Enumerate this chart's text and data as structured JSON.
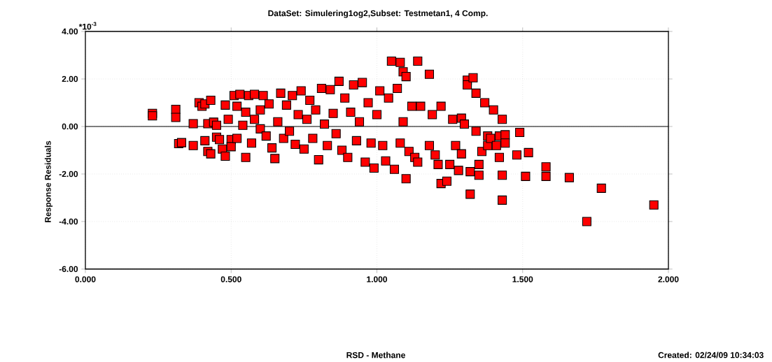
{
  "chart_data": {
    "type": "scatter",
    "title": "DataSet: Simulering1og2,Subset: Testmetan1, 4 Comp.",
    "ylabel": "Response Residuals",
    "annotations": [
      "*10$^{-3}$",
      "RSD - Methane",
      "Created: 02/24/09 10:34:03"
    ],
    "x": [
      0.23,
      0.23,
      0.31,
      0.31,
      0.32,
      0.33,
      0.37,
      0.37,
      0.39,
      0.4,
      0.41,
      0.41,
      0.42,
      0.42,
      0.43,
      0.43,
      0.44,
      0.45,
      0.45,
      0.46,
      0.47,
      0.48,
      0.48,
      0.49,
      0.5,
      0.5,
      0.51,
      0.52,
      0.52,
      0.53,
      0.54,
      0.55,
      0.55,
      0.56,
      0.57,
      0.58,
      0.58,
      0.6,
      0.6,
      0.61,
      0.62,
      0.63,
      0.64,
      0.65,
      0.66,
      0.67,
      0.68,
      0.69,
      0.7,
      0.71,
      0.72,
      0.73,
      0.74,
      0.75,
      0.76,
      0.77,
      0.78,
      0.79,
      0.8,
      0.81,
      0.82,
      0.83,
      0.84,
      0.85,
      0.86,
      0.87,
      0.88,
      0.89,
      0.9,
      0.91,
      0.92,
      0.93,
      0.94,
      0.95,
      0.96,
      0.97,
      0.98,
      0.99,
      1.0,
      1.01,
      1.02,
      1.03,
      1.04,
      1.05,
      1.06,
      1.07,
      1.08,
      1.08,
      1.09,
      1.09,
      1.1,
      1.1,
      1.11,
      1.12,
      1.13,
      1.14,
      1.14,
      1.15,
      1.18,
      1.18,
      1.19,
      1.2,
      1.21,
      1.22,
      1.22,
      1.24,
      1.25,
      1.26,
      1.27,
      1.28,
      1.29,
      1.29,
      1.3,
      1.31,
      1.31,
      1.32,
      1.32,
      1.33,
      1.34,
      1.34,
      1.35,
      1.35,
      1.36,
      1.37,
      1.38,
      1.38,
      1.39,
      1.4,
      1.41,
      1.42,
      1.42,
      1.43,
      1.43,
      1.43,
      1.44,
      1.44,
      1.48,
      1.49,
      1.51,
      1.52,
      1.58,
      1.58,
      1.66,
      1.72,
      1.77,
      1.95
    ],
    "series": [
      {
        "color": "#ff0000",
        "values": [
          0.55,
          0.45,
          0.72,
          0.38,
          -0.72,
          -0.68,
          0.12,
          -0.8,
          1.0,
          0.85,
          0.95,
          -0.6,
          0.12,
          -1.05,
          -1.15,
          1.1,
          0.18,
          0.05,
          -0.45,
          -0.55,
          -0.95,
          -1.25,
          0.9,
          0.3,
          -0.55,
          -0.85,
          1.3,
          0.85,
          -0.5,
          1.35,
          0.05,
          -1.3,
          0.6,
          1.3,
          -0.7,
          0.3,
          1.35,
          0.7,
          -0.1,
          1.3,
          -0.4,
          0.95,
          -0.9,
          -1.35,
          0.2,
          1.4,
          -0.5,
          0.9,
          -0.2,
          1.3,
          -0.75,
          0.5,
          1.5,
          -0.95,
          0.3,
          1.1,
          -0.5,
          0.7,
          -1.4,
          1.6,
          0.1,
          -0.8,
          1.55,
          0.55,
          -0.3,
          1.9,
          -1.0,
          1.2,
          -1.3,
          0.6,
          1.75,
          -0.6,
          0.2,
          1.85,
          -1.5,
          1.0,
          -0.7,
          -1.75,
          0.5,
          1.5,
          -0.8,
          -1.45,
          1.2,
          2.75,
          -1.8,
          1.6,
          2.7,
          -0.7,
          2.3,
          0.2,
          -2.2,
          2.1,
          -1.05,
          0.85,
          -1.3,
          2.75,
          -1.5,
          0.85,
          2.2,
          -0.8,
          0.5,
          -1.2,
          -1.6,
          0.85,
          -2.4,
          -2.3,
          -1.6,
          0.3,
          -0.8,
          -1.85,
          -1.15,
          0.35,
          0.1,
          1.95,
          1.75,
          -2.85,
          -1.9,
          2.05,
          1.4,
          -0.2,
          -2.05,
          -1.6,
          -1.05,
          1.0,
          -0.4,
          -0.8,
          -0.5,
          0.7,
          -0.8,
          -0.4,
          -1.3,
          -3.1,
          -2.05,
          0.3,
          -0.35,
          -0.7,
          -1.2,
          -0.25,
          -2.1,
          -1.1,
          -1.7,
          -2.1,
          -2.15,
          -4.0,
          -2.6,
          -3.3
        ]
      }
    ],
    "xlim": [
      0,
      2
    ],
    "ylim": [
      -6,
      4
    ],
    "xticks": [
      {
        "value": 0,
        "label": "0.000"
      },
      {
        "value": 0.5,
        "label": "0.500"
      },
      {
        "value": 1,
        "label": "1.000"
      },
      {
        "value": 1.5,
        "label": "1.500"
      },
      {
        "value": 2,
        "label": "2.000"
      }
    ],
    "yticks": [
      {
        "value": -6,
        "label": "-6.00"
      },
      {
        "value": -4,
        "label": "-4.00"
      },
      {
        "value": -2,
        "label": "-2.00"
      },
      {
        "value": 0,
        "label": "0.00"
      },
      {
        "value": 2,
        "label": "2.00"
      },
      {
        "value": 4,
        "label": "4.00"
      }
    ],
    "grid": true,
    "marker": "square",
    "ref_lines": [
      {
        "axis": "y",
        "value": 0
      }
    ]
  }
}
